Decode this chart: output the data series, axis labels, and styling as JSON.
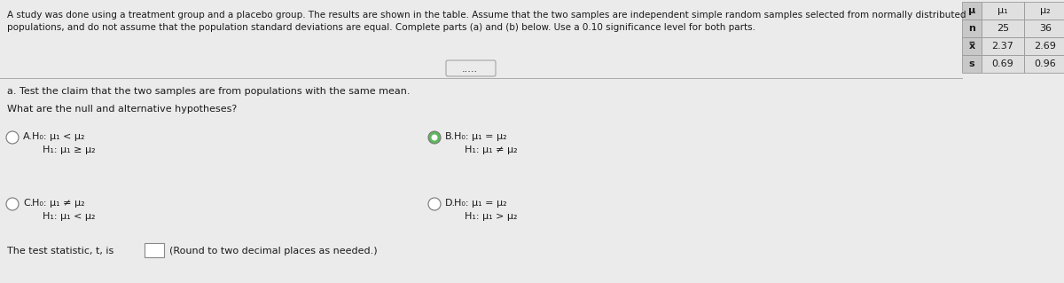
{
  "bg_color": "#ebebeb",
  "table_bg_header_col": "#c8c8c8",
  "table_bg_data": "#e0e0e0",
  "header_text_line1": "A study was done using a treatment group and a placebo group. The results are shown in the table. Assume that the two samples are independent simple random samples selected from normally distributed",
  "header_text_line2": "populations, and do not assume that the population standard deviations are equal. Complete parts (a) and (b) below. Use a 0.10 significance level for both parts.",
  "table_rows": [
    [
      "μ",
      "μ₁",
      "μ₂"
    ],
    [
      "n",
      "25",
      "36"
    ],
    [
      "x̅",
      "2.37",
      "2.69"
    ],
    [
      "s",
      "0.69",
      "0.96"
    ]
  ],
  "part_a_text": "a. Test the claim that the two samples are from populations with the same mean.",
  "what_text": "What are the null and alternative hypotheses?",
  "option_A_label": "A.",
  "option_A_line1": "H₀: μ₁ < μ₂",
  "option_A_line2": "H₁: μ₁ ≥ μ₂",
  "option_B_label": "B.",
  "option_B_line1": "H₀: μ₁ = μ₂",
  "option_B_line2": "H₁: μ₁ ≠ μ₂",
  "option_C_label": "C.",
  "option_C_line1": "H₀: μ₁ ≠ μ₂",
  "option_C_line2": "H₁: μ₁ < μ₂",
  "option_D_label": "D.",
  "option_D_line1": "H₀: μ₁ = μ₂",
  "option_D_line2": "H₁: μ₁ > μ₂",
  "test_stat_text": "The test statistic, t, is",
  "round_text": "(Round to two decimal places as needed.)",
  "selected_option": "B",
  "radio_color_selected": "#5cb85c",
  "radio_color_unselected": "#ffffff",
  "radio_border_unselected": "#777777",
  "text_color": "#1a1a1a",
  "dots_text": ".....",
  "separator_color": "#aaaaaa",
  "table_border_color": "#999999",
  "input_box_color": "#ffffff"
}
